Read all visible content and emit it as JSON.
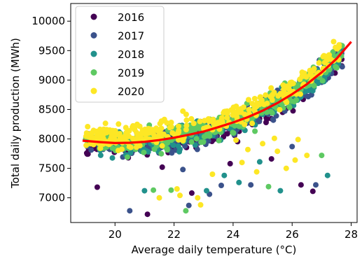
{
  "chart_data": {
    "type": "scatter",
    "xlabel": "Average daily temperature (°C)",
    "ylabel": "Total daily production (MWh)",
    "xlim": [
      18.5,
      28.2
    ],
    "ylim": [
      6580,
      10300
    ],
    "xticks": [
      20,
      22,
      24,
      26,
      28
    ],
    "yticks": [
      7000,
      7500,
      8000,
      8500,
      9000,
      9500,
      10000
    ],
    "grid": false,
    "legend_position": "top-left",
    "series": [
      {
        "name": "2016",
        "color": "#440154"
      },
      {
        "name": "2017",
        "color": "#3b528b"
      },
      {
        "name": "2018",
        "color": "#21918c"
      },
      {
        "name": "2019",
        "color": "#5ec962"
      },
      {
        "name": "2020",
        "color": "#fde725"
      }
    ],
    "fit_curve": {
      "color": "#ff0000",
      "x": [
        18.9,
        19.5,
        20.0,
        20.5,
        21.0,
        21.5,
        22.0,
        22.5,
        23.0,
        23.5,
        24.0,
        24.5,
        25.0,
        25.5,
        26.0,
        26.5,
        27.0,
        27.5,
        28.0
      ],
      "y": [
        7970,
        7945,
        7930,
        7935,
        7950,
        7980,
        8020,
        8070,
        8125,
        8200,
        8280,
        8370,
        8480,
        8610,
        8760,
        8930,
        9130,
        9360,
        9650
      ]
    },
    "outliers": [
      {
        "x": 19.4,
        "y": 7180,
        "s": 0
      },
      {
        "x": 20.5,
        "y": 6780,
        "s": 1
      },
      {
        "x": 21.1,
        "y": 6720,
        "s": 0
      },
      {
        "x": 21.0,
        "y": 7120,
        "s": 2
      },
      {
        "x": 21.3,
        "y": 7130,
        "s": 3
      },
      {
        "x": 21.5,
        "y": 7000,
        "s": 4
      },
      {
        "x": 21.9,
        "y": 7130,
        "s": 3
      },
      {
        "x": 22.1,
        "y": 7150,
        "s": 4
      },
      {
        "x": 22.2,
        "y": 7040,
        "s": 4
      },
      {
        "x": 22.4,
        "y": 6780,
        "s": 3
      },
      {
        "x": 22.5,
        "y": 6870,
        "s": 1
      },
      {
        "x": 22.6,
        "y": 7080,
        "s": 0
      },
      {
        "x": 22.8,
        "y": 7000,
        "s": 4
      },
      {
        "x": 22.9,
        "y": 6880,
        "s": 4
      },
      {
        "x": 23.1,
        "y": 7120,
        "s": 2
      },
      {
        "x": 23.2,
        "y": 7060,
        "s": 1
      },
      {
        "x": 23.3,
        "y": 7400,
        "s": 4
      },
      {
        "x": 23.6,
        "y": 7210,
        "s": 1
      },
      {
        "x": 23.7,
        "y": 7380,
        "s": 2
      },
      {
        "x": 23.9,
        "y": 7580,
        "s": 0
      },
      {
        "x": 24.2,
        "y": 7260,
        "s": 2
      },
      {
        "x": 24.3,
        "y": 7600,
        "s": 4
      },
      {
        "x": 24.5,
        "y": 7820,
        "s": 4
      },
      {
        "x": 24.6,
        "y": 7220,
        "s": 1
      },
      {
        "x": 24.8,
        "y": 7440,
        "s": 4
      },
      {
        "x": 24.9,
        "y": 7610,
        "s": 2
      },
      {
        "x": 25.0,
        "y": 7920,
        "s": 4
      },
      {
        "x": 25.2,
        "y": 7190,
        "s": 3
      },
      {
        "x": 25.3,
        "y": 7660,
        "s": 0
      },
      {
        "x": 25.5,
        "y": 7790,
        "s": 4
      },
      {
        "x": 25.6,
        "y": 7120,
        "s": 2
      },
      {
        "x": 25.8,
        "y": 7500,
        "s": 4
      },
      {
        "x": 26.0,
        "y": 7870,
        "s": 1
      },
      {
        "x": 26.1,
        "y": 7640,
        "s": 4
      },
      {
        "x": 26.3,
        "y": 7220,
        "s": 0
      },
      {
        "x": 26.5,
        "y": 7720,
        "s": 4
      },
      {
        "x": 26.7,
        "y": 7110,
        "s": 0
      },
      {
        "x": 26.8,
        "y": 7220,
        "s": 1
      },
      {
        "x": 27.0,
        "y": 7720,
        "s": 3
      },
      {
        "x": 27.2,
        "y": 7380,
        "s": 2
      },
      {
        "x": 24.1,
        "y": 7980,
        "s": 4
      },
      {
        "x": 25.4,
        "y": 8010,
        "s": 4
      },
      {
        "x": 26.2,
        "y": 7990,
        "s": 4
      },
      {
        "x": 22.3,
        "y": 7480,
        "s": 1
      },
      {
        "x": 21.6,
        "y": 7520,
        "s": 0
      }
    ]
  }
}
